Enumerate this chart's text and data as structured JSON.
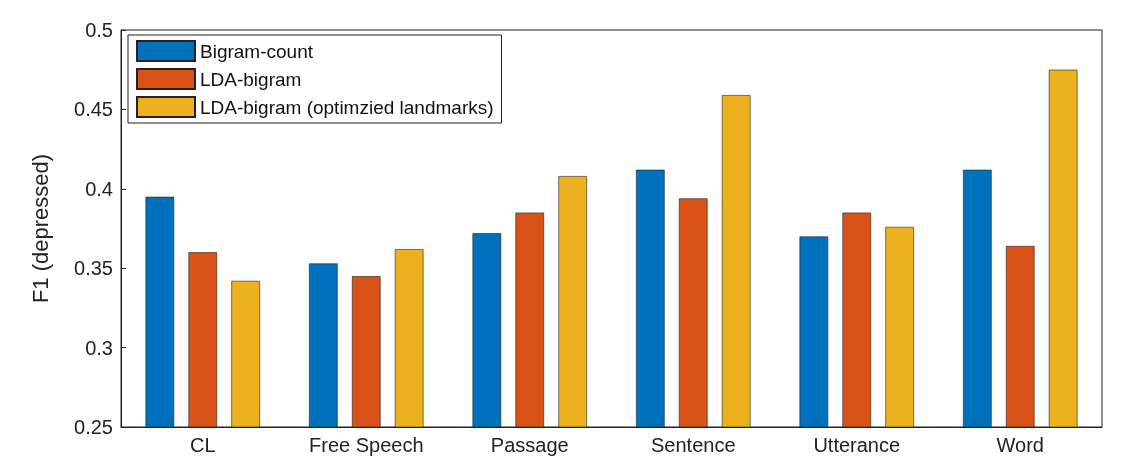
{
  "chart_data": {
    "type": "bar",
    "ylabel": "F1 (depressed)",
    "categories": [
      "CL",
      "Free Speech",
      "Passage",
      "Sentence",
      "Utterance",
      "Word"
    ],
    "series": [
      {
        "name": "Bigram-count",
        "color": "#0072bd",
        "values": [
          0.395,
          0.353,
          0.372,
          0.412,
          0.37,
          0.412
        ]
      },
      {
        "name": "LDA-bigram",
        "color": "#d95319",
        "values": [
          0.36,
          0.345,
          0.385,
          0.394,
          0.385,
          0.364
        ]
      },
      {
        "name": "LDA-bigram (optimzied landmarks)",
        "color": "#edb120",
        "values": [
          0.342,
          0.362,
          0.408,
          0.459,
          0.376,
          0.475
        ]
      }
    ],
    "ylim": [
      0.25,
      0.5
    ],
    "yticks": [
      0.25,
      0.3,
      0.35,
      0.4,
      0.45,
      0.5
    ],
    "grid": false,
    "legend": "top left"
  }
}
